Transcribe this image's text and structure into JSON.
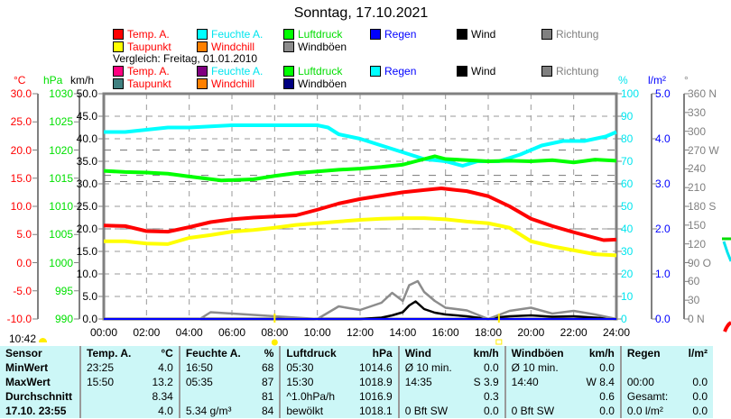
{
  "chart_data": {
    "type": "line",
    "title": "Sonntag, 17.10.2021",
    "comparison_label": "Vergleich: Freitag, 01.01.2010",
    "x_ticks": [
      "00:00",
      "02:00",
      "04:00",
      "06:00",
      "08:00",
      "10:00",
      "12:00",
      "14:00",
      "16:00",
      "18:00",
      "20:00",
      "22:00",
      "24:00"
    ],
    "xlim": [
      0,
      24
    ],
    "axes": {
      "temp": {
        "unit": "°C",
        "ylim": [
          -10,
          30
        ],
        "ticks": [
          "30.0",
          "25.0",
          "20.0",
          "15.0",
          "10.0",
          "5.0",
          "0.0",
          "-5.0",
          "-10.0"
        ],
        "color": "#ff0000"
      },
      "pressure": {
        "unit": "hPa",
        "ylim": [
          990,
          1030
        ],
        "ticks": [
          "1030",
          "1025",
          "1020",
          "1015",
          "1010",
          "1005",
          "1000",
          "995",
          "990"
        ],
        "color": "#00e000"
      },
      "wind": {
        "unit": "km/h",
        "ylim": [
          0,
          50
        ],
        "ticks": [
          "50.0",
          "45.0",
          "40.0",
          "35.0",
          "30.0",
          "25.0",
          "20.0",
          "15.0",
          "10.0",
          "5.0",
          "0.0"
        ],
        "color": "#000000"
      },
      "humidity": {
        "unit": "%",
        "ylim": [
          0,
          100
        ],
        "ticks": [
          "100",
          "90",
          "80",
          "70",
          "60",
          "50",
          "40",
          "30",
          "20",
          "10",
          "0"
        ],
        "color": "#00e5ee"
      },
      "rain": {
        "unit": "l/m²",
        "ylim": [
          0,
          5
        ],
        "ticks": [
          "5.0",
          "4.0",
          "3.0",
          "2.0",
          "1.0",
          "0.0"
        ],
        "color": "#0000ff"
      },
      "direction": {
        "unit": "°",
        "ylim": [
          0,
          360
        ],
        "ticks": [
          "360 N",
          "330",
          "300",
          "270 W",
          "240",
          "210",
          "180 S",
          "150",
          "120",
          "90  O",
          "60",
          "30",
          "0    N"
        ],
        "color": "#808080"
      }
    },
    "legend": [
      {
        "label": "Temp. A.",
        "color": "#ff0000",
        "text": "#ff0000"
      },
      {
        "label": "Feuchte A.",
        "color": "#00ffff",
        "text": "#00e5ee"
      },
      {
        "label": "Luftdruck",
        "color": "#00ff00",
        "text": "#00dd00"
      },
      {
        "label": "Regen",
        "color": "#0000ff",
        "text": "#0000ff"
      },
      {
        "label": "Wind",
        "color": "#000000",
        "text": "#000000"
      },
      {
        "label": "Richtung",
        "color": "#808080",
        "text": "#808080"
      },
      {
        "label": "Taupunkt",
        "color": "#ffff00",
        "text": "#ff0000"
      },
      {
        "label": "Windchill",
        "color": "#ff8000",
        "text": "#ff0000"
      },
      {
        "label": "Windböen",
        "color": "#8c8c8c",
        "text": "#000000"
      }
    ],
    "legend_compare": [
      {
        "label": "Temp. A.",
        "color": "#ff0080",
        "text": "#ff0000"
      },
      {
        "label": "Feuchte A.",
        "color": "#800080",
        "text": "#00e5ee"
      },
      {
        "label": "Luftdruck",
        "color": "#00ff00",
        "text": "#00dd00"
      },
      {
        "label": "Regen",
        "color": "#00ffff",
        "text": "#0000ff"
      },
      {
        "label": "Wind",
        "color": "#000000",
        "text": "#000000"
      },
      {
        "label": "Richtung",
        "color": "#808080",
        "text": "#808080"
      },
      {
        "label": "Taupunkt",
        "color": "#408080",
        "text": "#ff0000"
      },
      {
        "label": "Windchill",
        "color": "#ff8000",
        "text": "#ff0000"
      },
      {
        "label": "Windböen",
        "color": "#000080",
        "text": "#000000"
      }
    ],
    "series": [
      {
        "name": "Feuchte A.",
        "axis": "humidity",
        "color": "#00ffff",
        "x": [
          0,
          1,
          2,
          3,
          4,
          6,
          8,
          10,
          10.5,
          11,
          12,
          13,
          14,
          15,
          16,
          16.8,
          17.5,
          18.5,
          19.5,
          20.5,
          21.5,
          22.5,
          23.5,
          24
        ],
        "y": [
          83,
          83,
          84,
          85,
          85,
          86,
          86,
          86,
          85,
          82,
          80,
          77,
          74,
          71,
          70,
          68,
          70,
          70,
          73,
          77,
          79,
          79,
          81,
          83
        ]
      },
      {
        "name": "Luftdruck",
        "axis": "pressure",
        "color": "#00ff00",
        "x": [
          0,
          1,
          2,
          3,
          4,
          5.5,
          7,
          8,
          9,
          10,
          11,
          12,
          13,
          14,
          15,
          15.5,
          16,
          17,
          18,
          19,
          20,
          21,
          22,
          23,
          24
        ],
        "y": [
          1016.3,
          1016.1,
          1016,
          1015.8,
          1015.3,
          1014.6,
          1014.8,
          1015.4,
          1015.9,
          1016.2,
          1016.5,
          1016.7,
          1017,
          1017.4,
          1018.4,
          1018.9,
          1018.4,
          1018.2,
          1018,
          1018.1,
          1018,
          1018.2,
          1017.8,
          1018.3,
          1018.1
        ]
      },
      {
        "name": "Temp. A.",
        "axis": "temp",
        "color": "#ff0000",
        "x": [
          0,
          1,
          2,
          3,
          4,
          5,
          6,
          7,
          8,
          9,
          10,
          11,
          12,
          13,
          14,
          15,
          15.8,
          16.5,
          17,
          18,
          19,
          20,
          21,
          22,
          23,
          23.4,
          24
        ],
        "y": [
          6.6,
          6.5,
          5.6,
          5.5,
          6.3,
          7.2,
          7.7,
          8.0,
          8.2,
          8.4,
          9.4,
          10.5,
          11.3,
          11.9,
          12.5,
          12.9,
          13.2,
          12.9,
          12.7,
          11.8,
          10,
          7.8,
          6.5,
          5.4,
          4.4,
          4.0,
          4.1
        ]
      },
      {
        "name": "Taupunkt",
        "axis": "temp",
        "color": "#ffff00",
        "x": [
          0,
          1,
          2,
          3,
          4,
          5,
          6,
          7,
          8,
          9,
          10,
          11,
          12,
          13,
          14,
          15,
          16,
          17,
          18,
          19,
          20,
          21,
          22,
          23,
          24
        ],
        "y": [
          3.8,
          3.8,
          3.4,
          3.3,
          4.4,
          4.9,
          5.5,
          5.8,
          6.2,
          6.7,
          7.0,
          7.3,
          7.6,
          7.8,
          7.9,
          7.9,
          7.7,
          7.3,
          7.0,
          6.2,
          3.8,
          2.9,
          2.2,
          1.5,
          1.3
        ]
      },
      {
        "name": "Wind",
        "axis": "wind",
        "color": "#000000",
        "x": [
          0,
          10,
          11,
          12,
          13,
          13.5,
          14,
          14.3,
          14.6,
          15,
          15.5,
          16,
          17,
          18,
          18.5,
          19,
          20,
          21,
          22,
          23,
          24
        ],
        "y": [
          0,
          0,
          0,
          0,
          0.3,
          0.8,
          1.5,
          3.0,
          3.9,
          2.2,
          1.4,
          1.0,
          0.6,
          0,
          0.4,
          0.6,
          0.8,
          0.5,
          0.6,
          0.3,
          0
        ]
      },
      {
        "name": "Windböen",
        "axis": "wind",
        "color": "#8c8c8c",
        "x": [
          0,
          4.5,
          5,
          10,
          11,
          12,
          13,
          13.5,
          14,
          14.3,
          14.7,
          15,
          15.5,
          16,
          17,
          18,
          19,
          20,
          21,
          22,
          23,
          24
        ],
        "y": [
          0,
          0,
          1.5,
          0,
          2.8,
          2.0,
          3.6,
          5.8,
          4.0,
          7.5,
          8.4,
          6.0,
          4.0,
          2.5,
          1.9,
          0,
          1.8,
          2.5,
          1.2,
          1.8,
          1.0,
          0
        ]
      },
      {
        "name": "Regen",
        "axis": "rain",
        "color": "#0000ff",
        "x": [
          0,
          24
        ],
        "y": [
          0,
          0
        ]
      }
    ],
    "sun": {
      "rise_label": "10:42"
    }
  },
  "table": {
    "headers": [
      "Sensor",
      "Temp. A.",
      "°C",
      "Feuchte A.",
      "%",
      "Luftdruck",
      "hPa",
      "Wind",
      "km/h",
      "Windböen",
      "km/h",
      "Regen",
      "l/m²"
    ],
    "rows": [
      [
        "MinWert",
        "23:25",
        "4.0",
        "16:50",
        "68",
        "05:30",
        "1014.6",
        "Ø 10 min.",
        "0.0",
        "Ø 10 min.",
        "0.0",
        "",
        ""
      ],
      [
        "MaxWert",
        "15:50",
        "13.2",
        "05:35",
        "87",
        "15:30",
        "1018.9",
        "14:35",
        "S 3.9",
        "14:40",
        "W 8.4",
        "00:00",
        "0.0"
      ],
      [
        "Durchschnitt",
        "",
        "8.34",
        "",
        "81",
        "^1.0hPa/h",
        "1016.9",
        "",
        "0.3",
        "",
        "0.6",
        "Gesamt:",
        "0.0"
      ],
      [
        "17.10. 23:55",
        "",
        "4.0",
        "5.34 g/m³",
        "84",
        "bewölkt",
        "1018.1",
        "0 Bft SW",
        "0.0",
        "0 Bft SW",
        "0.0",
        "0.0 l/m²",
        "0.0"
      ]
    ]
  }
}
